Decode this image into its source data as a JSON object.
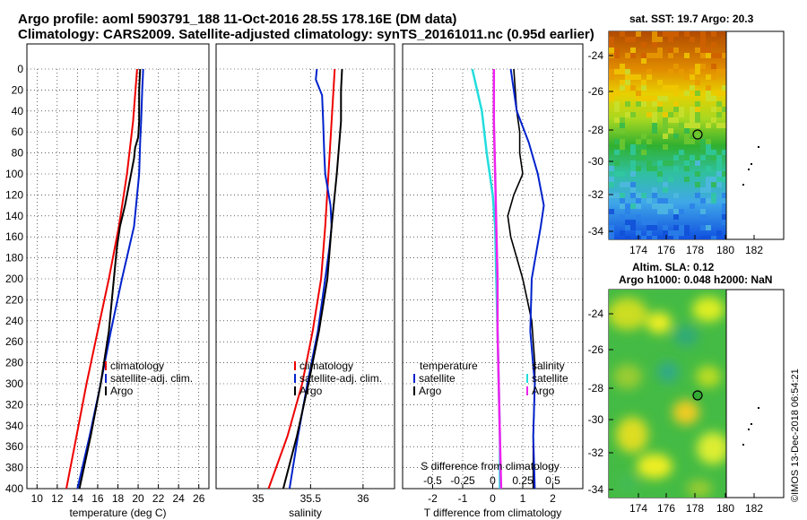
{
  "header": {
    "line1": "Argo profile: aoml 5903791_188 11-Oct-2016 28.5S 178.16E (DM data)",
    "line2": "Climatology: CARS2009. Satellite-adjusted climatology: synTS_20161011.nc (0.95d earlier)"
  },
  "colors": {
    "climatology": "#ee0000",
    "satellite": "#0022cc",
    "argo": "#000000",
    "sat_s": "#22dddd",
    "sat_t": "#ee22ee"
  },
  "chart_data": [
    {
      "type": "line",
      "xlabel": "temperature (deg C)",
      "ylabel": "",
      "xlim": [
        9,
        27
      ],
      "ylim": [
        400,
        0
      ],
      "xticks": [
        10,
        12,
        14,
        16,
        18,
        20,
        22,
        24,
        26
      ],
      "yticks": [
        0,
        20,
        40,
        60,
        80,
        100,
        120,
        140,
        160,
        180,
        200,
        220,
        240,
        260,
        280,
        300,
        320,
        340,
        360,
        380,
        400
      ],
      "legend": [
        "climatology",
        "satellite-adj. clim.",
        "Argo"
      ],
      "series": [
        {
          "name": "climatology",
          "depth": [
            0,
            50,
            100,
            150,
            200,
            250,
            300,
            350,
            400
          ],
          "values": [
            19.9,
            19.5,
            18.9,
            18.1,
            17.1,
            16.0,
            14.9,
            13.9,
            12.9
          ]
        },
        {
          "name": "satellite-adj. clim.",
          "depth": [
            0,
            20,
            50,
            70,
            100,
            150,
            200,
            250,
            300,
            350,
            400
          ],
          "values": [
            20.5,
            20.4,
            20.3,
            20.2,
            20.1,
            19.6,
            18.4,
            17.3,
            16.3,
            15.2,
            14.0
          ]
        },
        {
          "name": "Argo",
          "depth": [
            0,
            20,
            50,
            65,
            75,
            85,
            100,
            130,
            150,
            170,
            200,
            250,
            300,
            350,
            400
          ],
          "values": [
            20.2,
            20.1,
            20.1,
            20.0,
            19.7,
            19.6,
            19.3,
            18.7,
            18.2,
            17.9,
            17.6,
            17.1,
            16.3,
            15.3,
            14.2
          ]
        }
      ]
    },
    {
      "type": "line",
      "xlabel": "salinity",
      "xlim": [
        34.6,
        36.3
      ],
      "ylim": [
        400,
        0
      ],
      "xticks": [
        35,
        35.5,
        36
      ],
      "legend": [
        "climatology",
        "satellite-adj. clim.",
        "Argo"
      ],
      "series": [
        {
          "name": "climatology",
          "depth": [
            0,
            50,
            100,
            150,
            200,
            250,
            300,
            350,
            400
          ],
          "values": [
            35.73,
            35.7,
            35.67,
            35.64,
            35.6,
            35.52,
            35.42,
            35.28,
            35.1
          ]
        },
        {
          "name": "satellite-adj. clim.",
          "depth": [
            0,
            10,
            25,
            50,
            80,
            100,
            130,
            150,
            170,
            200,
            250,
            300,
            350,
            400
          ],
          "values": [
            35.56,
            35.55,
            35.61,
            35.62,
            35.63,
            35.64,
            35.69,
            35.7,
            35.68,
            35.64,
            35.57,
            35.47,
            35.38,
            35.3
          ]
        },
        {
          "name": "Argo",
          "depth": [
            0,
            20,
            50,
            100,
            150,
            200,
            250,
            300,
            350,
            400
          ],
          "values": [
            35.8,
            35.79,
            35.79,
            35.75,
            35.7,
            35.66,
            35.58,
            35.48,
            35.37,
            35.24
          ]
        }
      ]
    },
    {
      "type": "line",
      "xlabel": "T difference from climatology",
      "xlabel2": "S difference from climatology",
      "xlim": [
        -3,
        3
      ],
      "ylim": [
        400,
        0
      ],
      "xticks": [
        -2,
        -1,
        0,
        1,
        2
      ],
      "xticks2": [
        -0.5,
        -0.25,
        0,
        0.25,
        0.5
      ],
      "legend_left_title": "temperature",
      "legend_right_title": "salinity",
      "legend": [
        "satellite",
        "Argo"
      ],
      "series": [
        {
          "name": "T satellite",
          "depth": [
            0,
            40,
            70,
            100,
            130,
            150,
            200,
            250,
            300,
            350,
            400
          ],
          "values": [
            0.6,
            0.8,
            1.2,
            1.5,
            1.7,
            1.6,
            1.3,
            1.25,
            1.4,
            1.35,
            1.4
          ]
        },
        {
          "name": "T Argo",
          "depth": [
            0,
            40,
            60,
            80,
            100,
            120,
            140,
            160,
            200,
            240,
            280,
            300,
            350,
            400
          ],
          "values": [
            0.7,
            0.8,
            0.9,
            0.9,
            1.0,
            0.7,
            0.5,
            0.6,
            1.0,
            1.3,
            1.4,
            1.4,
            1.35,
            1.35
          ]
        },
        {
          "name": "S satellite",
          "depth": [
            0,
            40,
            80,
            120,
            150,
            200,
            250,
            300,
            350,
            400
          ],
          "values": [
            -0.17,
            -0.09,
            -0.05,
            0.0,
            0.02,
            0.03,
            0.04,
            0.05,
            0.06,
            0.06
          ]
        },
        {
          "name": "S Argo",
          "depth": [
            0,
            50,
            100,
            150,
            200,
            250,
            300,
            350,
            400
          ],
          "values": [
            0.01,
            0.01,
            0.02,
            0.03,
            0.04,
            0.04,
            0.05,
            0.06,
            0.07
          ]
        }
      ]
    }
  ],
  "maps": {
    "sst_title": "sat. SST: 19.7 Argo: 20.3",
    "sla_title_1": "Altim. SLA: 0.12",
    "sla_title_2": "Argo h1000: 0.048 h2000: NaN",
    "x_ticks": [
      "174",
      "176",
      "178",
      "180",
      "182"
    ],
    "y_ticks": [
      "-24",
      "-26",
      "-28",
      "-30",
      "-32",
      "-34"
    ]
  },
  "credit": "©IMOS 13-Dec-2018 06:54:21"
}
